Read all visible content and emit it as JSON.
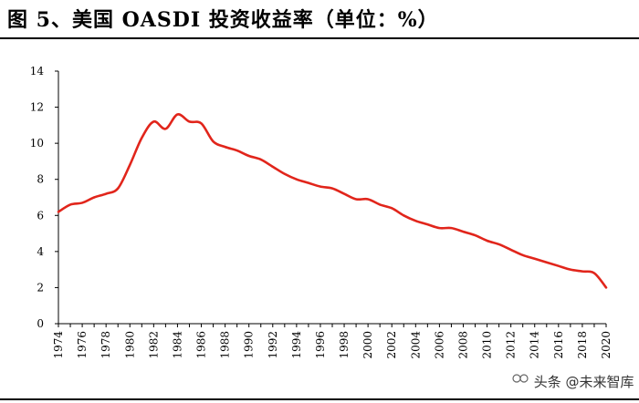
{
  "header": {
    "title": "图 5、美国 OASDI 投资收益率（单位：%）"
  },
  "watermark": {
    "text": "头条 @未来智库"
  },
  "chart_data": {
    "type": "line",
    "title": "图 5、美国 OASDI 投资收益率（单位：%）",
    "xlabel": "",
    "ylabel": "",
    "ylim": [
      0,
      14
    ],
    "yticks": [
      0,
      2,
      4,
      6,
      8,
      10,
      12,
      14
    ],
    "xticks": [
      "1974",
      "1976",
      "1978",
      "1980",
      "1982",
      "1984",
      "1986",
      "1988",
      "1990",
      "1992",
      "1994",
      "1996",
      "1998",
      "2000",
      "2002",
      "2004",
      "2006",
      "2008",
      "2010",
      "2012",
      "2014",
      "2016",
      "2018",
      "2020"
    ],
    "line_color": "#e1251b",
    "series": [
      {
        "name": "OASDI 投资收益率",
        "x": [
          1974,
          1975,
          1976,
          1977,
          1978,
          1979,
          1980,
          1981,
          1982,
          1983,
          1984,
          1985,
          1986,
          1987,
          1988,
          1989,
          1990,
          1991,
          1992,
          1993,
          1994,
          1995,
          1996,
          1997,
          1998,
          1999,
          2000,
          2001,
          2002,
          2003,
          2004,
          2005,
          2006,
          2007,
          2008,
          2009,
          2010,
          2011,
          2012,
          2013,
          2014,
          2015,
          2016,
          2017,
          2018,
          2019,
          2020
        ],
        "values": [
          6.2,
          6.6,
          6.7,
          7.0,
          7.2,
          7.5,
          8.8,
          10.3,
          11.2,
          10.8,
          11.6,
          11.2,
          11.1,
          10.1,
          9.8,
          9.6,
          9.3,
          9.1,
          8.7,
          8.3,
          8.0,
          7.8,
          7.6,
          7.5,
          7.2,
          6.9,
          6.9,
          6.6,
          6.4,
          6.0,
          5.7,
          5.5,
          5.3,
          5.3,
          5.1,
          4.9,
          4.6,
          4.4,
          4.1,
          3.8,
          3.6,
          3.4,
          3.2,
          3.0,
          2.9,
          2.8,
          2.0
        ]
      }
    ]
  }
}
